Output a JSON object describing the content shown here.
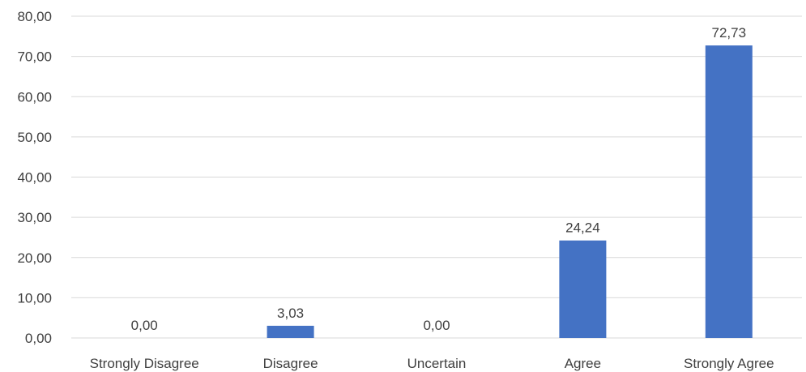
{
  "chart_data": {
    "type": "bar",
    "categories": [
      "Strongly Disagree",
      "Disagree",
      "Uncertain",
      "Agree",
      "Strongly Agree"
    ],
    "values": [
      0,
      3.03,
      0,
      24.24,
      72.73
    ],
    "value_labels": [
      "0,00",
      "3,03",
      "0,00",
      "24,24",
      "72,73"
    ],
    "ylim": [
      0,
      80
    ],
    "yticks": [
      0,
      10,
      20,
      30,
      40,
      50,
      60,
      70,
      80
    ],
    "ytick_labels": [
      "0,00",
      "10,00",
      "20,00",
      "30,00",
      "40,00",
      "50,00",
      "60,00",
      "70,00",
      "80,00"
    ],
    "bar_color": "#4472c4",
    "grid": true,
    "legend": false,
    "title": "",
    "xlabel": "",
    "ylabel": ""
  }
}
